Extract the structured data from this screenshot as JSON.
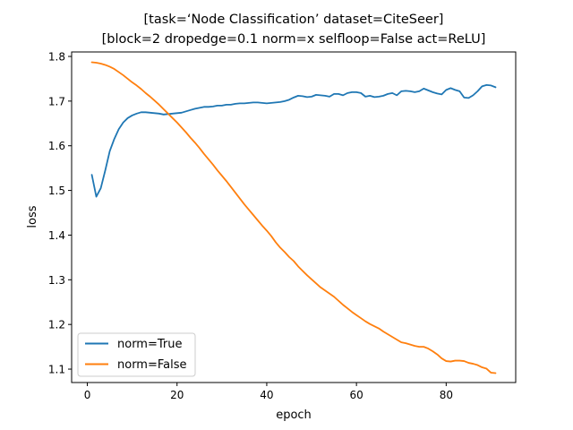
{
  "chart_data": {
    "type": "line",
    "title_line1": "[task=‘Node Classification’ dataset=CiteSeer]",
    "title_line2": "[block=2 dropedge=0.1 norm=x selfloop=False act=ReLU]",
    "xlabel": "epoch",
    "ylabel": "loss",
    "xlim": [
      -3.5,
      95.5
    ],
    "ylim": [
      1.07,
      1.81
    ],
    "xticks": [
      0,
      20,
      40,
      60,
      80
    ],
    "xtick_labels": [
      "0",
      "20",
      "40",
      "60",
      "80"
    ],
    "yticks": [
      1.1,
      1.2,
      1.3,
      1.4,
      1.5,
      1.6,
      1.7,
      1.8
    ],
    "ytick_labels": [
      "1.1",
      "1.2",
      "1.3",
      "1.4",
      "1.5",
      "1.6",
      "1.7",
      "1.8"
    ],
    "grid": false,
    "legend_position": "lower-left",
    "series": [
      {
        "name": "norm=True",
        "color": "#1f77b4",
        "x": [
          1,
          2,
          3,
          4,
          5,
          6,
          7,
          8,
          9,
          10,
          11,
          12,
          13,
          14,
          15,
          16,
          17,
          18,
          19,
          20,
          21,
          22,
          23,
          24,
          25,
          26,
          27,
          28,
          29,
          30,
          31,
          32,
          33,
          34,
          35,
          36,
          37,
          38,
          39,
          40,
          41,
          42,
          43,
          44,
          45,
          46,
          47,
          48,
          49,
          50,
          51,
          52,
          53,
          54,
          55,
          56,
          57,
          58,
          59,
          60,
          61,
          62,
          63,
          64,
          65,
          66,
          67,
          68,
          69,
          70,
          71,
          72,
          73,
          74,
          75,
          76,
          77,
          78,
          79,
          80,
          81,
          82,
          83,
          84,
          85,
          86,
          87,
          88,
          89,
          90,
          91
        ],
        "values": [
          1.535,
          1.486,
          1.505,
          1.545,
          1.588,
          1.615,
          1.637,
          1.652,
          1.662,
          1.668,
          1.672,
          1.675,
          1.675,
          1.674,
          1.673,
          1.672,
          1.67,
          1.671,
          1.672,
          1.673,
          1.674,
          1.677,
          1.68,
          1.683,
          1.685,
          1.687,
          1.687,
          1.688,
          1.69,
          1.69,
          1.692,
          1.692,
          1.694,
          1.695,
          1.695,
          1.696,
          1.697,
          1.697,
          1.696,
          1.695,
          1.696,
          1.697,
          1.698,
          1.7,
          1.703,
          1.708,
          1.712,
          1.711,
          1.709,
          1.71,
          1.714,
          1.713,
          1.712,
          1.71,
          1.716,
          1.716,
          1.713,
          1.718,
          1.72,
          1.72,
          1.718,
          1.71,
          1.712,
          1.709,
          1.71,
          1.712,
          1.716,
          1.718,
          1.713,
          1.722,
          1.723,
          1.722,
          1.72,
          1.722,
          1.728,
          1.724,
          1.72,
          1.717,
          1.715,
          1.725,
          1.729,
          1.725,
          1.722,
          1.708,
          1.707,
          1.713,
          1.722,
          1.733,
          1.736,
          1.735,
          1.731
        ]
      },
      {
        "name": "norm=False",
        "color": "#ff7f0e",
        "x": [
          1,
          2,
          3,
          4,
          5,
          6,
          7,
          8,
          9,
          10,
          11,
          12,
          13,
          14,
          15,
          16,
          17,
          18,
          19,
          20,
          21,
          22,
          23,
          24,
          25,
          26,
          27,
          28,
          29,
          30,
          31,
          32,
          33,
          34,
          35,
          36,
          37,
          38,
          39,
          40,
          41,
          42,
          43,
          44,
          45,
          46,
          47,
          48,
          49,
          50,
          51,
          52,
          53,
          54,
          55,
          56,
          57,
          58,
          59,
          60,
          61,
          62,
          63,
          64,
          65,
          66,
          67,
          68,
          69,
          70,
          71,
          72,
          73,
          74,
          75,
          76,
          77,
          78,
          79,
          80,
          81,
          82,
          83,
          84,
          85,
          86,
          87,
          88,
          89,
          90,
          91
        ],
        "values": [
          1.787,
          1.786,
          1.784,
          1.781,
          1.777,
          1.772,
          1.765,
          1.758,
          1.75,
          1.742,
          1.735,
          1.727,
          1.718,
          1.71,
          1.701,
          1.692,
          1.682,
          1.672,
          1.662,
          1.652,
          1.641,
          1.63,
          1.618,
          1.607,
          1.595,
          1.582,
          1.57,
          1.558,
          1.545,
          1.533,
          1.521,
          1.508,
          1.495,
          1.482,
          1.469,
          1.457,
          1.445,
          1.433,
          1.421,
          1.41,
          1.398,
          1.384,
          1.372,
          1.362,
          1.351,
          1.342,
          1.33,
          1.32,
          1.31,
          1.301,
          1.292,
          1.283,
          1.276,
          1.269,
          1.262,
          1.253,
          1.244,
          1.236,
          1.228,
          1.221,
          1.214,
          1.207,
          1.201,
          1.196,
          1.191,
          1.184,
          1.178,
          1.172,
          1.166,
          1.16,
          1.158,
          1.155,
          1.152,
          1.15,
          1.15,
          1.146,
          1.14,
          1.133,
          1.124,
          1.118,
          1.117,
          1.119,
          1.119,
          1.118,
          1.114,
          1.112,
          1.109,
          1.104,
          1.101,
          1.092,
          1.091
        ]
      }
    ]
  }
}
